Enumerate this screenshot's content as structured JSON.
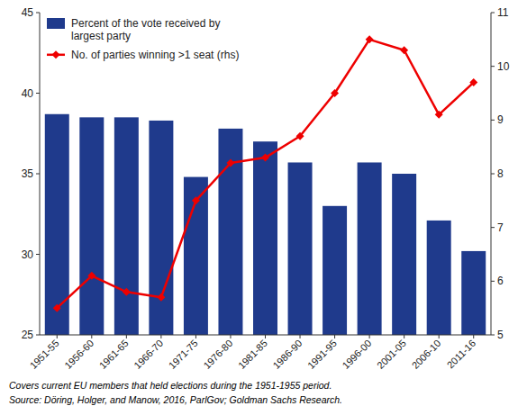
{
  "chart_data": {
    "type": "bar",
    "categories": [
      "1951-55",
      "1956-60",
      "1961-65",
      "1966-70",
      "1971-75",
      "1976-80",
      "1981-85",
      "1986-90",
      "1991-95",
      "1996-00",
      "2001-05",
      "2006-10",
      "2011-16"
    ],
    "series": [
      {
        "name": "Percent of the vote received by\nlargest party",
        "type": "bar",
        "color": "#1F3A8C",
        "values": [
          38.7,
          38.5,
          38.5,
          38.3,
          34.8,
          37.8,
          37.0,
          35.7,
          33.0,
          35.7,
          35.0,
          32.1,
          30.2
        ]
      },
      {
        "name": "No. of parties winning >1 seat (rhs)",
        "type": "line",
        "axis": "y2",
        "color": "#EE0000",
        "marker": "diamond",
        "line_style": "solid",
        "values": [
          5.5,
          6.1,
          5.8,
          5.7,
          7.5,
          8.2,
          8.3,
          8.7,
          9.5,
          10.5,
          10.3,
          9.1,
          9.7
        ]
      }
    ],
    "ylim": [
      25,
      45
    ],
    "yticks": [
      25,
      30,
      35,
      40,
      45
    ],
    "y2lim": [
      5,
      11
    ],
    "y2ticks": [
      5,
      6,
      7,
      8,
      9,
      10,
      11
    ],
    "legend": "top-left",
    "grid": false,
    "annotations": [
      "Covers current EU members that held elections during the 1951-1955 period.",
      "Source: Döring, Holger, and Manow, 2016, ParlGov; Goldman Sachs Research."
    ]
  }
}
